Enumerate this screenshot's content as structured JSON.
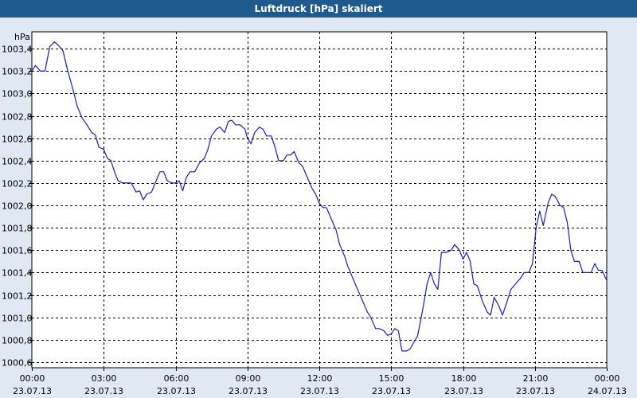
{
  "window": {
    "title": "Luftdruck [hPa] skaliert"
  },
  "chart_data": {
    "type": "line",
    "title": "Luftdruck [hPa] skaliert",
    "ylabel": "hPa",
    "xlabel": "",
    "ylim": [
      1000.55,
      1003.55
    ],
    "xlim": [
      0,
      24
    ],
    "grid": true,
    "line_color": "#1a1acd",
    "yticks": [
      {
        "value": 1000.6,
        "label": "1000,6"
      },
      {
        "value": 1000.8,
        "label": "1000,8"
      },
      {
        "value": 1001.0,
        "label": "1001,0"
      },
      {
        "value": 1001.2,
        "label": "1001,2"
      },
      {
        "value": 1001.4,
        "label": "1001,4"
      },
      {
        "value": 1001.6,
        "label": "1001,6"
      },
      {
        "value": 1001.8,
        "label": "1001,8"
      },
      {
        "value": 1002.0,
        "label": "1002,0"
      },
      {
        "value": 1002.2,
        "label": "1002,2"
      },
      {
        "value": 1002.4,
        "label": "1002,4"
      },
      {
        "value": 1002.6,
        "label": "1002,6"
      },
      {
        "value": 1002.8,
        "label": "1002,8"
      },
      {
        "value": 1003.0,
        "label": "1003,0"
      },
      {
        "value": 1003.2,
        "label": "1003,2"
      },
      {
        "value": 1003.4,
        "label": "1003,4"
      }
    ],
    "xticks": [
      {
        "value": 0,
        "time": "00:00",
        "date": "23.07.13"
      },
      {
        "value": 3,
        "time": "03:00",
        "date": "23.07.13"
      },
      {
        "value": 6,
        "time": "06:00",
        "date": "23.07.13"
      },
      {
        "value": 9,
        "time": "09:00",
        "date": "23.07.13"
      },
      {
        "value": 12,
        "time": "12:00",
        "date": "23.07.13"
      },
      {
        "value": 15,
        "time": "15:00",
        "date": "23.07.13"
      },
      {
        "value": 18,
        "time": "18:00",
        "date": "23.07.13"
      },
      {
        "value": 21,
        "time": "21:00",
        "date": "23.07.13"
      },
      {
        "value": 24,
        "time": "00:00",
        "date": "24.07.13"
      }
    ],
    "series": [
      {
        "values": [
          [
            0.0,
            1003.2
          ],
          [
            0.15,
            1003.25
          ],
          [
            0.35,
            1003.2
          ],
          [
            0.55,
            1003.2
          ],
          [
            0.75,
            1003.42
          ],
          [
            0.95,
            1003.46
          ],
          [
            1.15,
            1003.42
          ],
          [
            1.3,
            1003.38
          ],
          [
            1.5,
            1003.2
          ],
          [
            1.7,
            1003.05
          ],
          [
            1.9,
            1002.88
          ],
          [
            2.1,
            1002.78
          ],
          [
            2.3,
            1002.72
          ],
          [
            2.5,
            1002.65
          ],
          [
            2.65,
            1002.63
          ],
          [
            2.8,
            1002.52
          ],
          [
            3.0,
            1002.5
          ],
          [
            3.15,
            1002.42
          ],
          [
            3.3,
            1002.4
          ],
          [
            3.45,
            1002.3
          ],
          [
            3.6,
            1002.22
          ],
          [
            3.8,
            1002.2
          ],
          [
            4.0,
            1002.2
          ],
          [
            4.15,
            1002.2
          ],
          [
            4.35,
            1002.12
          ],
          [
            4.5,
            1002.13
          ],
          [
            4.65,
            1002.05
          ],
          [
            4.8,
            1002.1
          ],
          [
            5.0,
            1002.12
          ],
          [
            5.15,
            1002.2
          ],
          [
            5.35,
            1002.3
          ],
          [
            5.5,
            1002.3
          ],
          [
            5.65,
            1002.22
          ],
          [
            5.85,
            1002.2
          ],
          [
            6.0,
            1002.2
          ],
          [
            6.15,
            1002.22
          ],
          [
            6.3,
            1002.13
          ],
          [
            6.45,
            1002.25
          ],
          [
            6.6,
            1002.3
          ],
          [
            6.8,
            1002.3
          ],
          [
            7.0,
            1002.38
          ],
          [
            7.2,
            1002.42
          ],
          [
            7.35,
            1002.5
          ],
          [
            7.5,
            1002.62
          ],
          [
            7.7,
            1002.68
          ],
          [
            7.85,
            1002.7
          ],
          [
            8.05,
            1002.65
          ],
          [
            8.2,
            1002.75
          ],
          [
            8.35,
            1002.76
          ],
          [
            8.5,
            1002.72
          ],
          [
            8.7,
            1002.72
          ],
          [
            8.9,
            1002.68
          ],
          [
            9.0,
            1002.6
          ],
          [
            9.15,
            1002.55
          ],
          [
            9.3,
            1002.65
          ],
          [
            9.5,
            1002.7
          ],
          [
            9.65,
            1002.68
          ],
          [
            9.8,
            1002.62
          ],
          [
            10.0,
            1002.62
          ],
          [
            10.15,
            1002.52
          ],
          [
            10.3,
            1002.4
          ],
          [
            10.5,
            1002.4
          ],
          [
            10.65,
            1002.45
          ],
          [
            10.8,
            1002.45
          ],
          [
            10.95,
            1002.48
          ],
          [
            11.15,
            1002.38
          ],
          [
            11.3,
            1002.35
          ],
          [
            11.5,
            1002.25
          ],
          [
            11.7,
            1002.15
          ],
          [
            11.85,
            1002.1
          ],
          [
            12.0,
            1002.02
          ],
          [
            12.15,
            1001.98
          ],
          [
            12.3,
            1001.98
          ],
          [
            12.5,
            1001.88
          ],
          [
            12.7,
            1001.78
          ],
          [
            12.85,
            1001.65
          ],
          [
            13.05,
            1001.55
          ],
          [
            13.2,
            1001.45
          ],
          [
            13.4,
            1001.35
          ],
          [
            13.6,
            1001.25
          ],
          [
            13.8,
            1001.15
          ],
          [
            14.0,
            1001.05
          ],
          [
            14.15,
            1001.0
          ],
          [
            14.35,
            1000.9
          ],
          [
            14.5,
            1000.9
          ],
          [
            14.7,
            1000.88
          ],
          [
            14.85,
            1000.84
          ],
          [
            15.0,
            1000.85
          ],
          [
            15.15,
            1000.9
          ],
          [
            15.3,
            1000.88
          ],
          [
            15.45,
            1000.7
          ],
          [
            15.65,
            1000.7
          ],
          [
            15.8,
            1000.72
          ],
          [
            15.95,
            1000.78
          ],
          [
            16.1,
            1000.83
          ],
          [
            16.3,
            1001.05
          ],
          [
            16.5,
            1001.3
          ],
          [
            16.65,
            1001.4
          ],
          [
            16.8,
            1001.3
          ],
          [
            16.95,
            1001.25
          ],
          [
            17.1,
            1001.58
          ],
          [
            17.3,
            1001.58
          ],
          [
            17.5,
            1001.6
          ],
          [
            17.65,
            1001.65
          ],
          [
            17.85,
            1001.6
          ],
          [
            18.0,
            1001.52
          ],
          [
            18.15,
            1001.58
          ],
          [
            18.3,
            1001.5
          ],
          [
            18.45,
            1001.3
          ],
          [
            18.6,
            1001.28
          ],
          [
            18.8,
            1001.15
          ],
          [
            19.0,
            1001.05
          ],
          [
            19.15,
            1001.02
          ],
          [
            19.3,
            1001.18
          ],
          [
            19.5,
            1001.1
          ],
          [
            19.65,
            1001.02
          ],
          [
            19.85,
            1001.15
          ],
          [
            20.0,
            1001.25
          ],
          [
            20.2,
            1001.3
          ],
          [
            20.4,
            1001.35
          ],
          [
            20.55,
            1001.4
          ],
          [
            20.75,
            1001.4
          ],
          [
            20.9,
            1001.48
          ],
          [
            21.05,
            1001.8
          ],
          [
            21.2,
            1001.95
          ],
          [
            21.35,
            1001.82
          ],
          [
            21.55,
            1002.02
          ],
          [
            21.7,
            1002.1
          ],
          [
            21.85,
            1002.08
          ],
          [
            22.05,
            1002.0
          ],
          [
            22.2,
            1001.98
          ],
          [
            22.35,
            1001.85
          ],
          [
            22.5,
            1001.6
          ],
          [
            22.65,
            1001.5
          ],
          [
            22.85,
            1001.5
          ],
          [
            23.0,
            1001.4
          ],
          [
            23.2,
            1001.4
          ],
          [
            23.35,
            1001.4
          ],
          [
            23.5,
            1001.48
          ],
          [
            23.65,
            1001.42
          ],
          [
            23.8,
            1001.42
          ],
          [
            24.0,
            1001.33
          ]
        ]
      }
    ]
  }
}
